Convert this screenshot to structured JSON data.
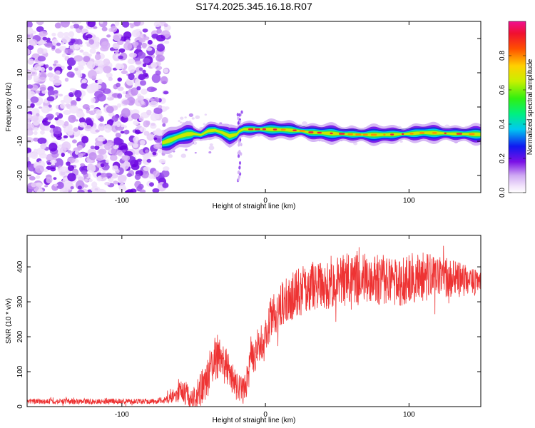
{
  "figure": {
    "title": "S174.2025.345.16.18.R07"
  },
  "chart_data": [
    {
      "type": "heatmap",
      "name": "spectrogram",
      "title": "",
      "xlabel": "Height of straight line (km)",
      "ylabel": "Frequency (Hz)",
      "xlim": [
        -166,
        150
      ],
      "ylim": [
        -25,
        25
      ],
      "xticks": [
        -100,
        0,
        100
      ],
      "yticks": [
        -20,
        -10,
        0,
        10,
        20
      ],
      "noise_region_x": [
        -166,
        -68
      ],
      "ridge": {
        "x": [
          -72,
          -65,
          -60,
          -55,
          -50,
          -45,
          -40,
          -35,
          -30,
          -25,
          -20,
          -18,
          -15,
          0,
          15,
          25,
          30,
          40,
          50,
          60,
          70,
          80,
          90,
          100,
          110,
          120,
          130,
          150
        ],
        "freq": [
          -10.5,
          -9.5,
          -8.6,
          -8.0,
          -7.8,
          -8.2,
          -7.0,
          -6.8,
          -7.5,
          -8.5,
          -8.0,
          -7.0,
          -6.5,
          -6.5,
          -6.7,
          -7.0,
          -7.4,
          -7.6,
          -7.8,
          -8.0,
          -8.1,
          -8.1,
          -8.0,
          -7.8,
          -7.5,
          -7.6,
          -7.8,
          -8.0
        ]
      },
      "colorbar": {
        "label": "Normalized spectral amplitude",
        "range": [
          0,
          1
        ],
        "ticks": [
          0.0,
          0.2,
          0.4,
          0.6,
          0.8
        ],
        "tick_labels": [
          "0.0",
          "0.2",
          "0.4",
          "0.6",
          "0.8"
        ]
      }
    },
    {
      "type": "line",
      "name": "snr",
      "title": "",
      "xlabel": "Height of straight line (km)",
      "ylabel": "SNR (10 * v/v)",
      "xlim": [
        -166,
        150
      ],
      "ylim": [
        0,
        490
      ],
      "xticks": [
        -100,
        0,
        100
      ],
      "yticks": [
        0,
        100,
        200,
        300,
        400
      ],
      "color": "#ee3333",
      "envelope": {
        "x": [
          -166,
          -80,
          -70,
          -62,
          -57,
          -52,
          -47,
          -40,
          -34,
          -27,
          -22,
          -15,
          -10,
          -5,
          0,
          5,
          10,
          20,
          30,
          40,
          50,
          60,
          70,
          80,
          90,
          100,
          110,
          120,
          130,
          140,
          150
        ],
        "mean": [
          15,
          15,
          18,
          35,
          45,
          20,
          40,
          90,
          140,
          110,
          70,
          40,
          130,
          180,
          210,
          260,
          290,
          320,
          340,
          350,
          360,
          365,
          365,
          362,
          360,
          365,
          370,
          370,
          365,
          360,
          350
        ],
        "spread": [
          8,
          8,
          10,
          25,
          40,
          25,
          45,
          60,
          70,
          55,
          45,
          40,
          55,
          60,
          60,
          65,
          65,
          70,
          70,
          75,
          75,
          75,
          75,
          75,
          75,
          75,
          70,
          65,
          55,
          45,
          35
        ]
      }
    }
  ]
}
